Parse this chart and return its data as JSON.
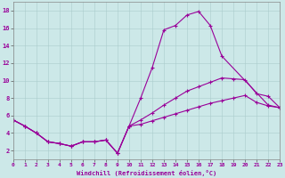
{
  "xlabel": "Windchill (Refroidissement éolien,°C)",
  "bg_color": "#cce8e8",
  "line_color": "#990099",
  "xlim": [
    0,
    23
  ],
  "ylim": [
    1,
    19
  ],
  "x_ticks": [
    0,
    1,
    2,
    3,
    4,
    5,
    6,
    7,
    8,
    9,
    10,
    11,
    12,
    13,
    14,
    15,
    16,
    17,
    18,
    19,
    20,
    21,
    22,
    23
  ],
  "y_ticks": [
    2,
    4,
    6,
    8,
    10,
    12,
    14,
    16,
    18
  ],
  "line1_x": [
    0,
    1,
    2,
    3,
    4,
    5,
    6,
    7,
    8,
    9,
    10,
    11,
    12,
    13,
    14,
    15,
    16,
    17,
    18,
    22,
    23
  ],
  "line1_y": [
    5.5,
    4.8,
    4.0,
    3.0,
    2.8,
    2.5,
    3.0,
    3.0,
    3.2,
    1.7,
    4.8,
    8.0,
    11.5,
    15.8,
    16.3,
    17.5,
    17.9,
    16.3,
    12.8,
    7.2,
    6.9
  ],
  "line2_x": [
    0,
    1,
    2,
    3,
    4,
    5,
    6,
    7,
    8,
    9,
    10,
    11,
    12,
    13,
    14,
    15,
    16,
    17,
    18,
    19,
    20,
    21,
    22,
    23
  ],
  "line2_y": [
    5.5,
    4.8,
    4.0,
    3.0,
    2.8,
    2.5,
    3.0,
    3.0,
    3.2,
    1.7,
    4.8,
    5.5,
    6.3,
    7.2,
    8.0,
    8.8,
    9.3,
    9.8,
    10.3,
    10.2,
    10.1,
    8.5,
    8.2,
    6.9
  ],
  "line3_x": [
    0,
    1,
    2,
    3,
    4,
    5,
    6,
    7,
    8,
    9,
    10,
    11,
    12,
    13,
    14,
    15,
    16,
    17,
    18,
    19,
    20,
    21,
    22,
    23
  ],
  "line3_y": [
    5.5,
    4.8,
    4.0,
    3.0,
    2.8,
    2.5,
    3.0,
    3.0,
    3.2,
    1.7,
    4.8,
    5.0,
    5.4,
    5.8,
    6.2,
    6.6,
    7.0,
    7.4,
    7.7,
    8.0,
    8.3,
    7.5,
    7.1,
    6.9
  ]
}
